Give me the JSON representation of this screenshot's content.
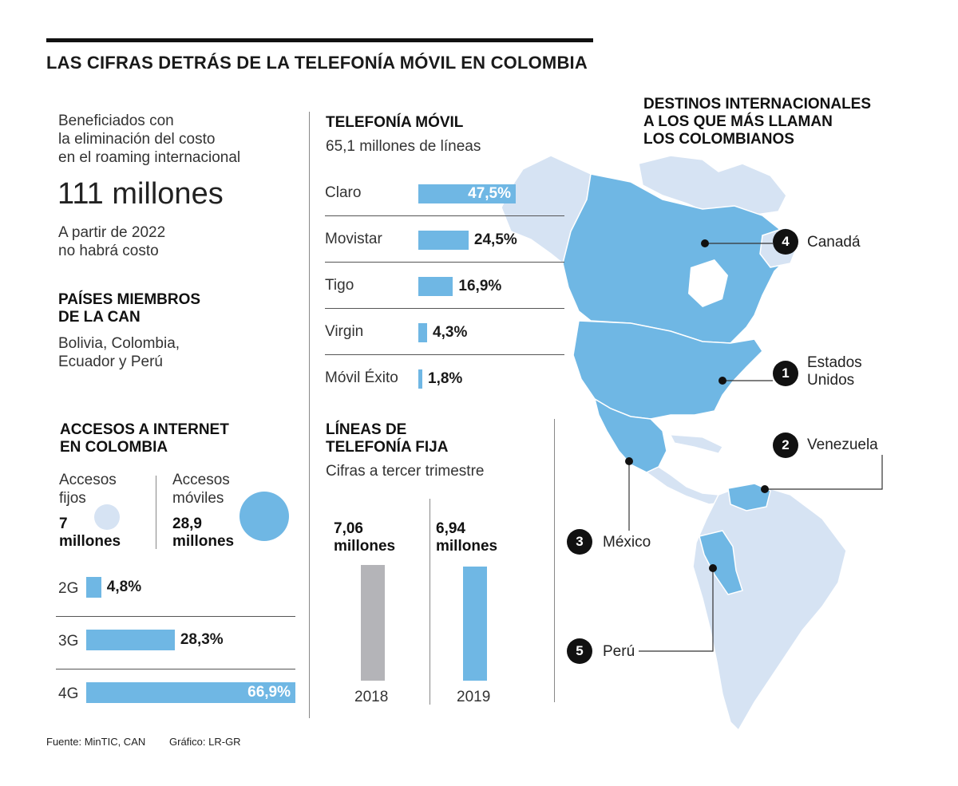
{
  "title": "LAS CIFRAS DETRÁS DE LA TELEFONÍA MÓVIL EN COLOMBIA",
  "colors": {
    "accent": "#6fb7e4",
    "light_blue": "#d6e3f3",
    "gray": "#b4b4b8",
    "dark": "#111111"
  },
  "roaming": {
    "intro": [
      "Beneficiados con",
      "la eliminación del costo",
      "en el roaming internacional"
    ],
    "value": "111 millones",
    "note": [
      "A partir de 2022",
      "no habrá costo"
    ]
  },
  "can": {
    "heading": [
      "PAÍSES MIEMBROS",
      "DE LA CAN"
    ],
    "countries": [
      "Bolivia, Colombia,",
      "Ecuador y Perú"
    ]
  },
  "internet": {
    "heading": [
      "ACCESOS A INTERNET",
      "EN COLOMBIA"
    ],
    "fixed": {
      "label": [
        "Accesos",
        "fijos"
      ],
      "value": [
        "7",
        "millones"
      ],
      "amount": 7
    },
    "mobile": {
      "label": [
        "Accesos",
        "móviles"
      ],
      "value": [
        "28,9",
        "millones"
      ],
      "amount": 28.9
    }
  },
  "mobile": {
    "heading": "TELEFONÍA MÓVIL",
    "subheading": "65,1 millones de líneas"
  },
  "fixed_lines": {
    "heading": [
      "LÍNEAS DE",
      "TELEFONÍA FIJA"
    ],
    "subheading": "Cifras a tercer trimestre"
  },
  "destinations": {
    "heading": [
      "DESTINOS INTERNACIONALES",
      "A LOS QUE MÁS LLAMAN",
      "LOS COLOMBIANOS"
    ],
    "items": [
      {
        "rank": "1",
        "name": [
          "Estados",
          "Unidos"
        ]
      },
      {
        "rank": "2",
        "name": [
          "Venezuela"
        ]
      },
      {
        "rank": "3",
        "name": [
          "México"
        ]
      },
      {
        "rank": "4",
        "name": [
          "Canadá"
        ]
      },
      {
        "rank": "5",
        "name": [
          "Perú"
        ]
      }
    ]
  },
  "footer": {
    "source": "Fuente: MinTIC, CAN",
    "graphic": "Gráfico: LR-GR"
  },
  "chart_data": [
    {
      "type": "bar",
      "orientation": "horizontal",
      "categories": [
        "Claro",
        "Movistar",
        "Tigo",
        "Virgin",
        "Móvil Éxito"
      ],
      "values": [
        47.5,
        24.5,
        16.9,
        4.3,
        1.8
      ],
      "labels": [
        "47,5%",
        "24,5%",
        "16,9%",
        "4,3%",
        "1,8%"
      ],
      "title": "TELEFONÍA MÓVIL",
      "unit": "%"
    },
    {
      "type": "bar",
      "orientation": "horizontal",
      "categories": [
        "2G",
        "3G",
        "4G"
      ],
      "values": [
        4.8,
        28.3,
        66.9
      ],
      "labels": [
        "4,8%",
        "28,3%",
        "66,9%"
      ],
      "unit": "%"
    },
    {
      "type": "bar",
      "orientation": "vertical",
      "categories": [
        "2018",
        "2019"
      ],
      "values": [
        7.06,
        6.94
      ],
      "labels": [
        [
          "7,06",
          "millones"
        ],
        [
          "6,94",
          "millones"
        ]
      ],
      "title": "LÍNEAS DE TELEFONÍA FIJA",
      "colors": [
        "#b4b4b8",
        "#6fb7e4"
      ]
    }
  ]
}
